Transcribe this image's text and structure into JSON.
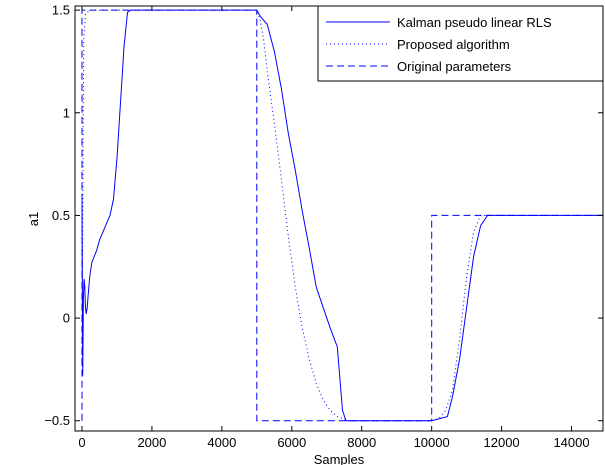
{
  "chart_data": {
    "type": "line",
    "title": "",
    "xlabel": "Samples",
    "ylabel": "a1",
    "xlim": [
      -200,
      14900
    ],
    "ylim": [
      -0.55,
      1.52
    ],
    "xticks": [
      0,
      2000,
      4000,
      6000,
      8000,
      10000,
      12000,
      14000
    ],
    "xtick_labels": [
      "0",
      "2000",
      "4000",
      "6000",
      "8000",
      "10000",
      "12000",
      "14000"
    ],
    "yticks": [
      -0.5,
      0,
      0.5,
      1,
      1.5
    ],
    "ytick_labels": [
      "−0.5",
      "0",
      "0.5",
      "1",
      "1.5"
    ],
    "grid": false,
    "legend_position": "top-right",
    "series": [
      {
        "name": "Kalman pseudo linear RLS",
        "style": "solid",
        "color": "#0000ff",
        "x": [
          0,
          20,
          40,
          60,
          80,
          100,
          120,
          150,
          180,
          220,
          280,
          350,
          420,
          500,
          600,
          700,
          800,
          900,
          1000,
          1100,
          1200,
          1300,
          1400,
          2000,
          3000,
          4000,
          5000,
          5100,
          5300,
          5500,
          5700,
          5900,
          6100,
          6300,
          6500,
          6700,
          6900,
          7100,
          7300,
          7450,
          7550,
          8000,
          9000,
          10000,
          10450,
          10600,
          10800,
          11000,
          11200,
          11400,
          11600,
          12000,
          13000,
          14000,
          14900
        ],
        "y": [
          0.6,
          -0.28,
          0.1,
          0.19,
          0.15,
          0.05,
          0.02,
          0.05,
          0.12,
          0.2,
          0.27,
          0.3,
          0.33,
          0.38,
          0.42,
          0.46,
          0.5,
          0.58,
          0.78,
          1.05,
          1.32,
          1.49,
          1.5,
          1.5,
          1.5,
          1.5,
          1.5,
          1.47,
          1.43,
          1.3,
          1.12,
          0.9,
          0.72,
          0.52,
          0.34,
          0.15,
          0.05,
          -0.05,
          -0.14,
          -0.45,
          -0.5,
          -0.5,
          -0.5,
          -0.5,
          -0.48,
          -0.38,
          -0.2,
          0.05,
          0.3,
          0.45,
          0.5,
          0.5,
          0.5,
          0.5,
          0.5
        ]
      },
      {
        "name": "Proposed algorithm",
        "style": "dotted",
        "color": "#0000ff",
        "x": [
          0,
          50,
          100,
          150,
          250,
          400,
          1000,
          2000,
          3000,
          4000,
          5000,
          5100,
          5200,
          5300,
          5500,
          5700,
          5900,
          6100,
          6300,
          6500,
          6700,
          6900,
          7100,
          7300,
          7600,
          8000,
          9000,
          10000,
          10200,
          10400,
          10600,
          10800,
          11000,
          11200,
          11400,
          12000,
          13000,
          14000,
          14900
        ],
        "y": [
          -0.2,
          1.35,
          1.48,
          1.49,
          1.5,
          1.5,
          1.5,
          1.5,
          1.5,
          1.5,
          1.5,
          1.45,
          1.35,
          1.2,
          0.95,
          0.68,
          0.4,
          0.15,
          -0.05,
          -0.2,
          -0.32,
          -0.4,
          -0.45,
          -0.48,
          -0.5,
          -0.5,
          -0.5,
          -0.5,
          -0.49,
          -0.45,
          -0.35,
          -0.1,
          0.2,
          0.42,
          0.5,
          0.5,
          0.5,
          0.5,
          0.5
        ]
      },
      {
        "name": "Original parameters",
        "style": "dashed",
        "color": "#0000ff",
        "x": [
          0,
          0,
          5000,
          5000,
          10000,
          10000,
          14900
        ],
        "y": [
          -0.5,
          1.5,
          1.5,
          -0.5,
          -0.5,
          0.5,
          0.5
        ]
      }
    ]
  }
}
